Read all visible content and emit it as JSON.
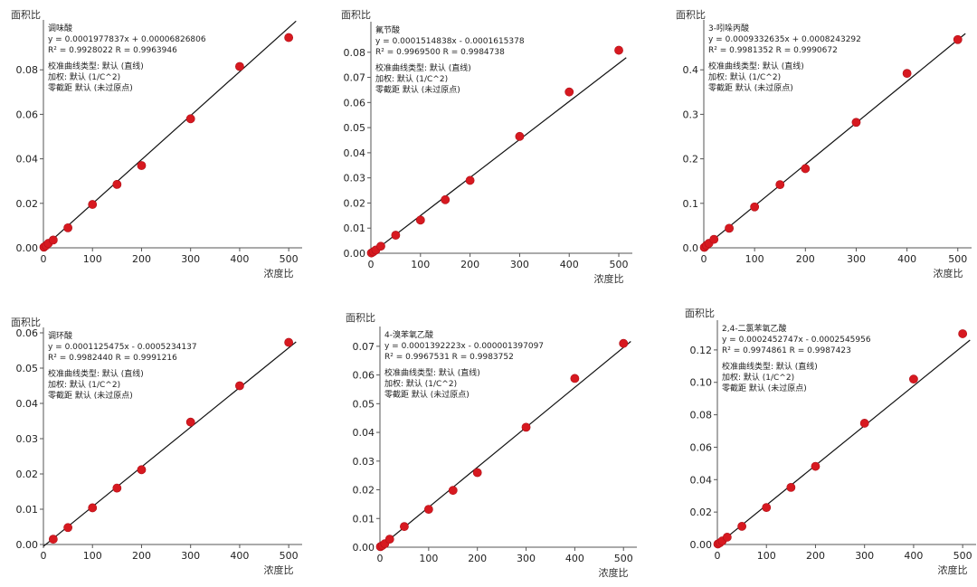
{
  "chart_data": [
    {
      "type": "scatter",
      "ylabel": "面积比",
      "xlabel": "浓度比",
      "xlim": [
        0,
        520
      ],
      "ylim": [
        0,
        0.1
      ],
      "xticks": [
        "0",
        "100",
        "200",
        "300",
        "400",
        "500"
      ],
      "yticks": [
        "0.00",
        "0.02",
        "0.04",
        "0.06",
        "0.08"
      ],
      "compound": "调味酸",
      "equation": "y = 0.0001977837x + 0.00006826806",
      "r_values": "R² = 0.9928022    R = 0.9963946",
      "curve_type": "校准曲线类型: 默认 (直线)",
      "weighting": "加权: 默认 (1/C^2)",
      "intercept": "零截距 默认 (未过原点)",
      "slope": 0.0001977837,
      "offset": 6.826806e-05,
      "points": [
        [
          1,
          0.0003
        ],
        [
          5,
          0.001
        ],
        [
          10,
          0.002
        ],
        [
          20,
          0.0035
        ],
        [
          50,
          0.009
        ],
        [
          100,
          0.0195
        ],
        [
          150,
          0.0285
        ],
        [
          200,
          0.037
        ],
        [
          300,
          0.058
        ],
        [
          400,
          0.0815
        ],
        [
          500,
          0.0945
        ]
      ]
    },
    {
      "type": "scatter",
      "ylabel": "面积比",
      "xlabel": "浓度比",
      "xlim": [
        0,
        520
      ],
      "ylim": [
        0,
        0.09
      ],
      "xticks": [
        "0",
        "100",
        "200",
        "300",
        "400",
        "500"
      ],
      "yticks": [
        "0.00",
        "0.01",
        "0.02",
        "0.03",
        "0.04",
        "0.05",
        "0.06",
        "0.07",
        "0.08"
      ],
      "compound": "氟节酸",
      "equation": "y = 0.0001514838x - 0.0001615378",
      "r_values": "R² = 0.9969500    R = 0.9984738",
      "curve_type": "校准曲线类型: 默认 (直线)",
      "weighting": "加权: 默认 (1/C^2)",
      "intercept": "零截距 默认 (未过原点)",
      "slope": 0.0001514838,
      "offset": -0.0001615378,
      "points": [
        [
          1,
          0.0001
        ],
        [
          5,
          0.0006
        ],
        [
          10,
          0.0013
        ],
        [
          20,
          0.0028
        ],
        [
          50,
          0.0072
        ],
        [
          100,
          0.0132
        ],
        [
          150,
          0.0213
        ],
        [
          200,
          0.029
        ],
        [
          300,
          0.0465
        ],
        [
          400,
          0.0642
        ],
        [
          500,
          0.0808
        ]
      ]
    },
    {
      "type": "scatter",
      "ylabel": "面积比",
      "xlabel": "浓度比",
      "xlim": [
        0,
        520
      ],
      "ylim": [
        0,
        0.5
      ],
      "xticks": [
        "0",
        "100",
        "200",
        "300",
        "400",
        "500"
      ],
      "yticks": [
        "0.0",
        "0.1",
        "0.2",
        "0.3",
        "0.4"
      ],
      "compound": "3-吲哚丙酸",
      "equation": "y = 0.0009332635x + 0.0008243292",
      "r_values": "R² = 0.9981352    R = 0.9990672",
      "curve_type": "校准曲线类型: 默认 (直线)",
      "weighting": "加权: 默认 (1/C^2)",
      "intercept": "零截距 默认 (未过原点)",
      "slope": 0.0009332635,
      "offset": 0.0008243292,
      "points": [
        [
          1,
          0.001
        ],
        [
          5,
          0.0055
        ],
        [
          10,
          0.01
        ],
        [
          20,
          0.019
        ],
        [
          50,
          0.044
        ],
        [
          100,
          0.092
        ],
        [
          150,
          0.142
        ],
        [
          200,
          0.178
        ],
        [
          300,
          0.282
        ],
        [
          400,
          0.392
        ],
        [
          500,
          0.468
        ]
      ]
    },
    {
      "type": "scatter",
      "ylabel": "面积比",
      "xlabel": "浓度比",
      "xlim": [
        0,
        520
      ],
      "ylim": [
        0,
        0.06
      ],
      "xticks": [
        "0",
        "100",
        "200",
        "300",
        "400",
        "500"
      ],
      "yticks": [
        "0.00",
        "0.01",
        "0.02",
        "0.03",
        "0.04",
        "0.05",
        "0.06"
      ],
      "compound": "调环酸",
      "equation": "y = 0.0001125475x - 0.0005234137",
      "r_values": "R² = 0.9982440    R = 0.9991216",
      "curve_type": "校准曲线类型: 默认 (直线)",
      "weighting": "加权: 默认 (1/C^2)",
      "intercept": "零截距 默认 (未过原点)",
      "slope": 0.0001125475,
      "offset": -0.0005234137,
      "points": [
        [
          20,
          0.0015
        ],
        [
          50,
          0.0048
        ],
        [
          100,
          0.0104
        ],
        [
          150,
          0.016
        ],
        [
          200,
          0.0212
        ],
        [
          300,
          0.0347
        ],
        [
          400,
          0.045
        ],
        [
          500,
          0.0573
        ]
      ]
    },
    {
      "type": "scatter",
      "ylabel": "面积比",
      "xlabel": "浓度比",
      "xlim": [
        0,
        520
      ],
      "ylim": [
        0,
        0.075
      ],
      "xticks": [
        "0",
        "100",
        "200",
        "300",
        "400",
        "500"
      ],
      "yticks": [
        "0.00",
        "0.01",
        "0.02",
        "0.03",
        "0.04",
        "0.05",
        "0.06",
        "0.07"
      ],
      "compound": "4-溴苯氧乙酸",
      "equation": "y = 0.0001392223x - 0.000001397097",
      "r_values": "R² = 0.9967531    R = 0.9983752",
      "curve_type": "校准曲线类型: 默认 (直线)",
      "weighting": "加权: 默认 (1/C^2)",
      "intercept": "零截距 默认 (未过原点)",
      "slope": 0.0001392223,
      "offset": -1.397097e-06,
      "points": [
        [
          1,
          0.0002
        ],
        [
          5,
          0.0006
        ],
        [
          10,
          0.0012
        ],
        [
          20,
          0.0028
        ],
        [
          50,
          0.0072
        ],
        [
          100,
          0.0132
        ],
        [
          150,
          0.0198
        ],
        [
          200,
          0.026
        ],
        [
          300,
          0.0418
        ],
        [
          400,
          0.0588
        ],
        [
          500,
          0.071
        ]
      ]
    },
    {
      "type": "scatter",
      "ylabel": "面积比",
      "xlabel": "浓度比",
      "xlim": [
        0,
        520
      ],
      "ylim": [
        0,
        0.135
      ],
      "xticks": [
        "0",
        "100",
        "200",
        "300",
        "400",
        "500"
      ],
      "yticks": [
        "0.00",
        "0.02",
        "0.04",
        "0.06",
        "0.08",
        "0.10",
        "0.12"
      ],
      "compound": "2,4-二氯苯氧乙酸",
      "equation": "y = 0.0002452747x - 0.0002545956",
      "r_values": "R² = 0.9974861    R = 0.9987423",
      "curve_type": "校准曲线类型: 默认 (直线)",
      "weighting": "加权: 默认 (1/C^2)",
      "intercept": "零截距 默认 (未过原点)",
      "slope": 0.0002452747,
      "offset": -0.0002545956,
      "points": [
        [
          1,
          0.0003
        ],
        [
          5,
          0.001
        ],
        [
          10,
          0.0022
        ],
        [
          20,
          0.0045
        ],
        [
          50,
          0.0112
        ],
        [
          100,
          0.0228
        ],
        [
          150,
          0.0352
        ],
        [
          200,
          0.0482
        ],
        [
          300,
          0.0748
        ],
        [
          400,
          0.102
        ],
        [
          500,
          0.13
        ]
      ]
    }
  ]
}
